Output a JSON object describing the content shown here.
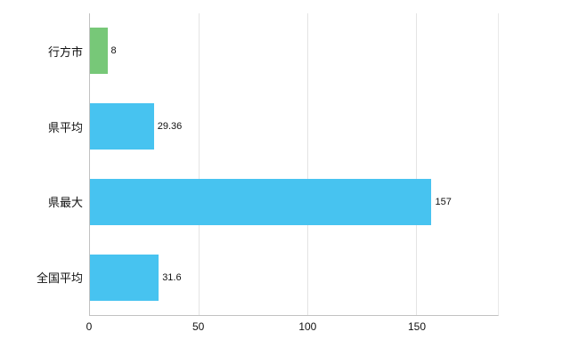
{
  "chart_data": {
    "type": "bar",
    "orientation": "horizontal",
    "title": "",
    "xlabel": "",
    "ylabel": "",
    "categories": [
      "行方市",
      "県平均",
      "県最大",
      "全国平均"
    ],
    "values": [
      8,
      29.36,
      157,
      31.6
    ],
    "value_labels": [
      "8",
      "29.36",
      "157",
      "31.6"
    ],
    "bar_colors": [
      "#77c878",
      "#47c3f0",
      "#47c3f0",
      "#47c3f0"
    ],
    "x_ticks": [
      0,
      50,
      100,
      150
    ],
    "x_tick_labels": [
      "0",
      "50",
      "100",
      "150"
    ],
    "xlim": [
      0,
      187.5
    ],
    "grid": "vertical",
    "legend": "none",
    "background": "#ffffff"
  }
}
